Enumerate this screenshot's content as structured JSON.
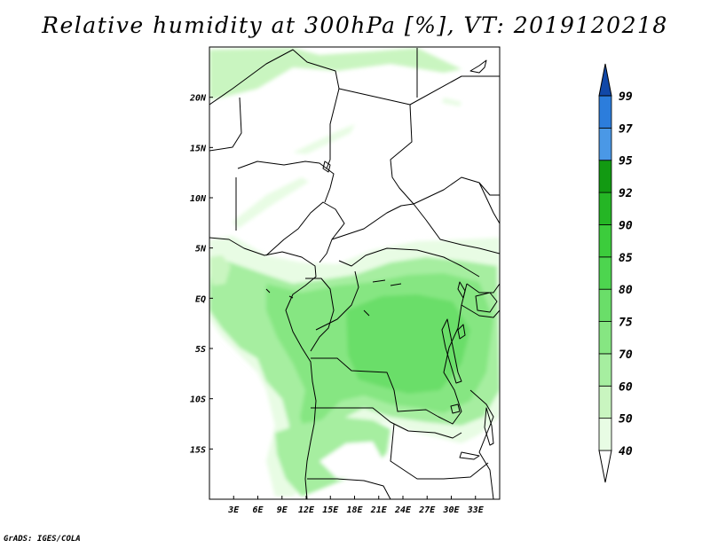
{
  "title": "Relative humidity at 300hPa [%], VT: 2019120218",
  "credit": "GrADS: IGES/COLA",
  "map": {
    "lon_range": [
      0,
      36
    ],
    "lat_range": [
      -20,
      25
    ],
    "x_ticks": [
      {
        "lon": 3,
        "label": "3E"
      },
      {
        "lon": 6,
        "label": "6E"
      },
      {
        "lon": 9,
        "label": "9E"
      },
      {
        "lon": 12,
        "label": "12E"
      },
      {
        "lon": 15,
        "label": "15E"
      },
      {
        "lon": 18,
        "label": "18E"
      },
      {
        "lon": 21,
        "label": "21E"
      },
      {
        "lon": 24,
        "label": "24E"
      },
      {
        "lon": 27,
        "label": "27E"
      },
      {
        "lon": 30,
        "label": "30E"
      },
      {
        "lon": 33,
        "label": "33E"
      }
    ],
    "y_ticks": [
      {
        "lat": 20,
        "label": "20N"
      },
      {
        "lat": 15,
        "label": "15N"
      },
      {
        "lat": 10,
        "label": "10N"
      },
      {
        "lat": 5,
        "label": "5N"
      },
      {
        "lat": 0,
        "label": "EQ"
      },
      {
        "lat": -5,
        "label": "5S"
      },
      {
        "lat": -10,
        "label": "10S"
      },
      {
        "lat": -15,
        "label": "15S"
      }
    ]
  },
  "colorbar": {
    "labels": [
      "40",
      "50",
      "60",
      "70",
      "75",
      "80",
      "85",
      "90",
      "92",
      "95",
      "97",
      "99"
    ],
    "colors": [
      "#e8fce4",
      "#c9f5c0",
      "#a6eea0",
      "#86e682",
      "#6ade69",
      "#4dd54f",
      "#3ccc3c",
      "#25b625",
      "#129a12",
      "#4a98e6",
      "#2c7ddc",
      "#1a5fc8",
      "#1148a8"
    ]
  }
}
